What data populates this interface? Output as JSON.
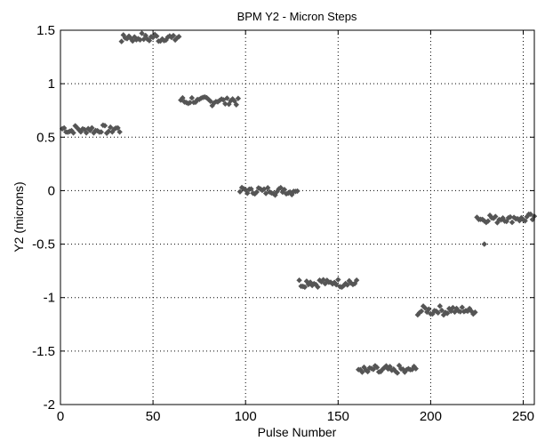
{
  "chart_data": {
    "type": "scatter",
    "title": "BPM Y2 - Micron Steps",
    "xlabel": "Pulse Number",
    "ylabel": "Y2 (microns)",
    "xlim": [
      0,
      256
    ],
    "ylim": [
      -2,
      1.5
    ],
    "grid": true,
    "marker_color": "#555555",
    "x_ticks": [
      0,
      50,
      100,
      150,
      200,
      250
    ],
    "x_tick_labels": [
      "0",
      "50",
      "100",
      "150",
      "200",
      "250"
    ],
    "y_ticks": [
      1.5,
      1,
      0.5,
      0,
      -0.5,
      -1,
      -1.5,
      -2
    ],
    "y_tick_labels": [
      "1.5",
      "1",
      "0.5",
      "0",
      "-0.5",
      "-1",
      "-1.5",
      "-2"
    ],
    "groups": [
      {
        "x_start": 1,
        "x_end": 33,
        "level": 0.57
      },
      {
        "x_start": 33,
        "x_end": 65,
        "level": 1.43
      },
      {
        "x_start": 65,
        "x_end": 97,
        "level": 0.84
      },
      {
        "x_start": 97,
        "x_end": 129,
        "level": 0.0
      },
      {
        "x_start": 129,
        "x_end": 161,
        "level": -0.86
      },
      {
        "x_start": 161,
        "x_end": 193,
        "level": -1.68
      },
      {
        "x_start": 193,
        "x_end": 225,
        "level": -1.12
      },
      {
        "x_start": 225,
        "x_end": 257,
        "level": -0.26
      }
    ],
    "outliers": [
      {
        "x": 229,
        "y": -0.5
      }
    ]
  }
}
